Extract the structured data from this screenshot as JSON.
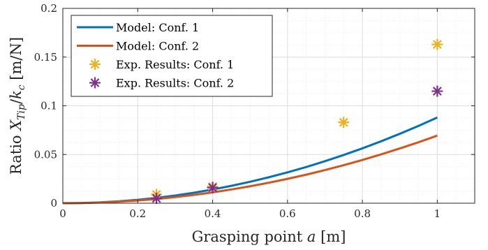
{
  "chart_data": {
    "type": "line",
    "title": "",
    "xlabel": {
      "prefix": "Grasping point ",
      "var": "a",
      "unit": " [m]"
    },
    "ylabel": {
      "prefix": "Ratio ",
      "var": "X",
      "sub": "Tip",
      "slash": "/",
      "var2": "k",
      "sub2": "c",
      "unit": " [m/N]"
    },
    "xlim": [
      0,
      1.1
    ],
    "ylim": [
      0,
      0.2
    ],
    "xticks": [
      0,
      0.2,
      0.4,
      0.6,
      0.8,
      1
    ],
    "xtick_labels": [
      "0",
      "0.2",
      "0.4",
      "0.6",
      "0.8",
      "1"
    ],
    "yticks": [
      0,
      0.05,
      0.1,
      0.15,
      0.2
    ],
    "ytick_labels": [
      "0",
      "0.05",
      "0.1",
      "0.15",
      "0.2"
    ],
    "grid": true,
    "legend_position": "top-left",
    "series": [
      {
        "name": "Model: Conf. 1",
        "kind": "line",
        "color": "#0072BD",
        "x": [
          0,
          0.05,
          0.1,
          0.15,
          0.2,
          0.25,
          0.3,
          0.35,
          0.4,
          0.45,
          0.5,
          0.55,
          0.6,
          0.65,
          0.7,
          0.75,
          0.8,
          0.85,
          0.9,
          0.95,
          1.0
        ],
        "values": [
          0,
          0.00022,
          0.00088,
          0.00198,
          0.00352,
          0.0055,
          0.00792,
          0.01078,
          0.01408,
          0.01782,
          0.022,
          0.02662,
          0.03168,
          0.03718,
          0.04312,
          0.0495,
          0.05632,
          0.06358,
          0.07128,
          0.07942,
          0.088
        ]
      },
      {
        "name": "Model: Conf. 2",
        "kind": "line",
        "color": "#D95319",
        "x": [
          0,
          0.05,
          0.1,
          0.15,
          0.2,
          0.25,
          0.3,
          0.35,
          0.4,
          0.45,
          0.5,
          0.55,
          0.6,
          0.65,
          0.7,
          0.75,
          0.8,
          0.85,
          0.9,
          0.95,
          1.0
        ],
        "values": [
          0,
          0.00017,
          0.0007,
          0.00157,
          0.00278,
          0.00434,
          0.00625,
          0.0085,
          0.0111,
          0.0141,
          0.0174,
          0.021,
          0.025,
          0.0293,
          0.034,
          0.039,
          0.0444,
          0.0501,
          0.0562,
          0.0626,
          0.0694
        ]
      },
      {
        "name": "Exp. Results: Conf. 1",
        "kind": "scatter",
        "color": "#EDB120",
        "x": [
          0.25,
          0.4,
          0.75,
          1.0
        ],
        "values": [
          0.009,
          0.017,
          0.083,
          0.163
        ]
      },
      {
        "name": "Exp. Results: Conf. 2",
        "kind": "scatter",
        "color": "#7E2F8E",
        "x": [
          0.25,
          0.4,
          1.0
        ],
        "values": [
          0.005,
          0.016,
          0.115
        ]
      }
    ]
  }
}
